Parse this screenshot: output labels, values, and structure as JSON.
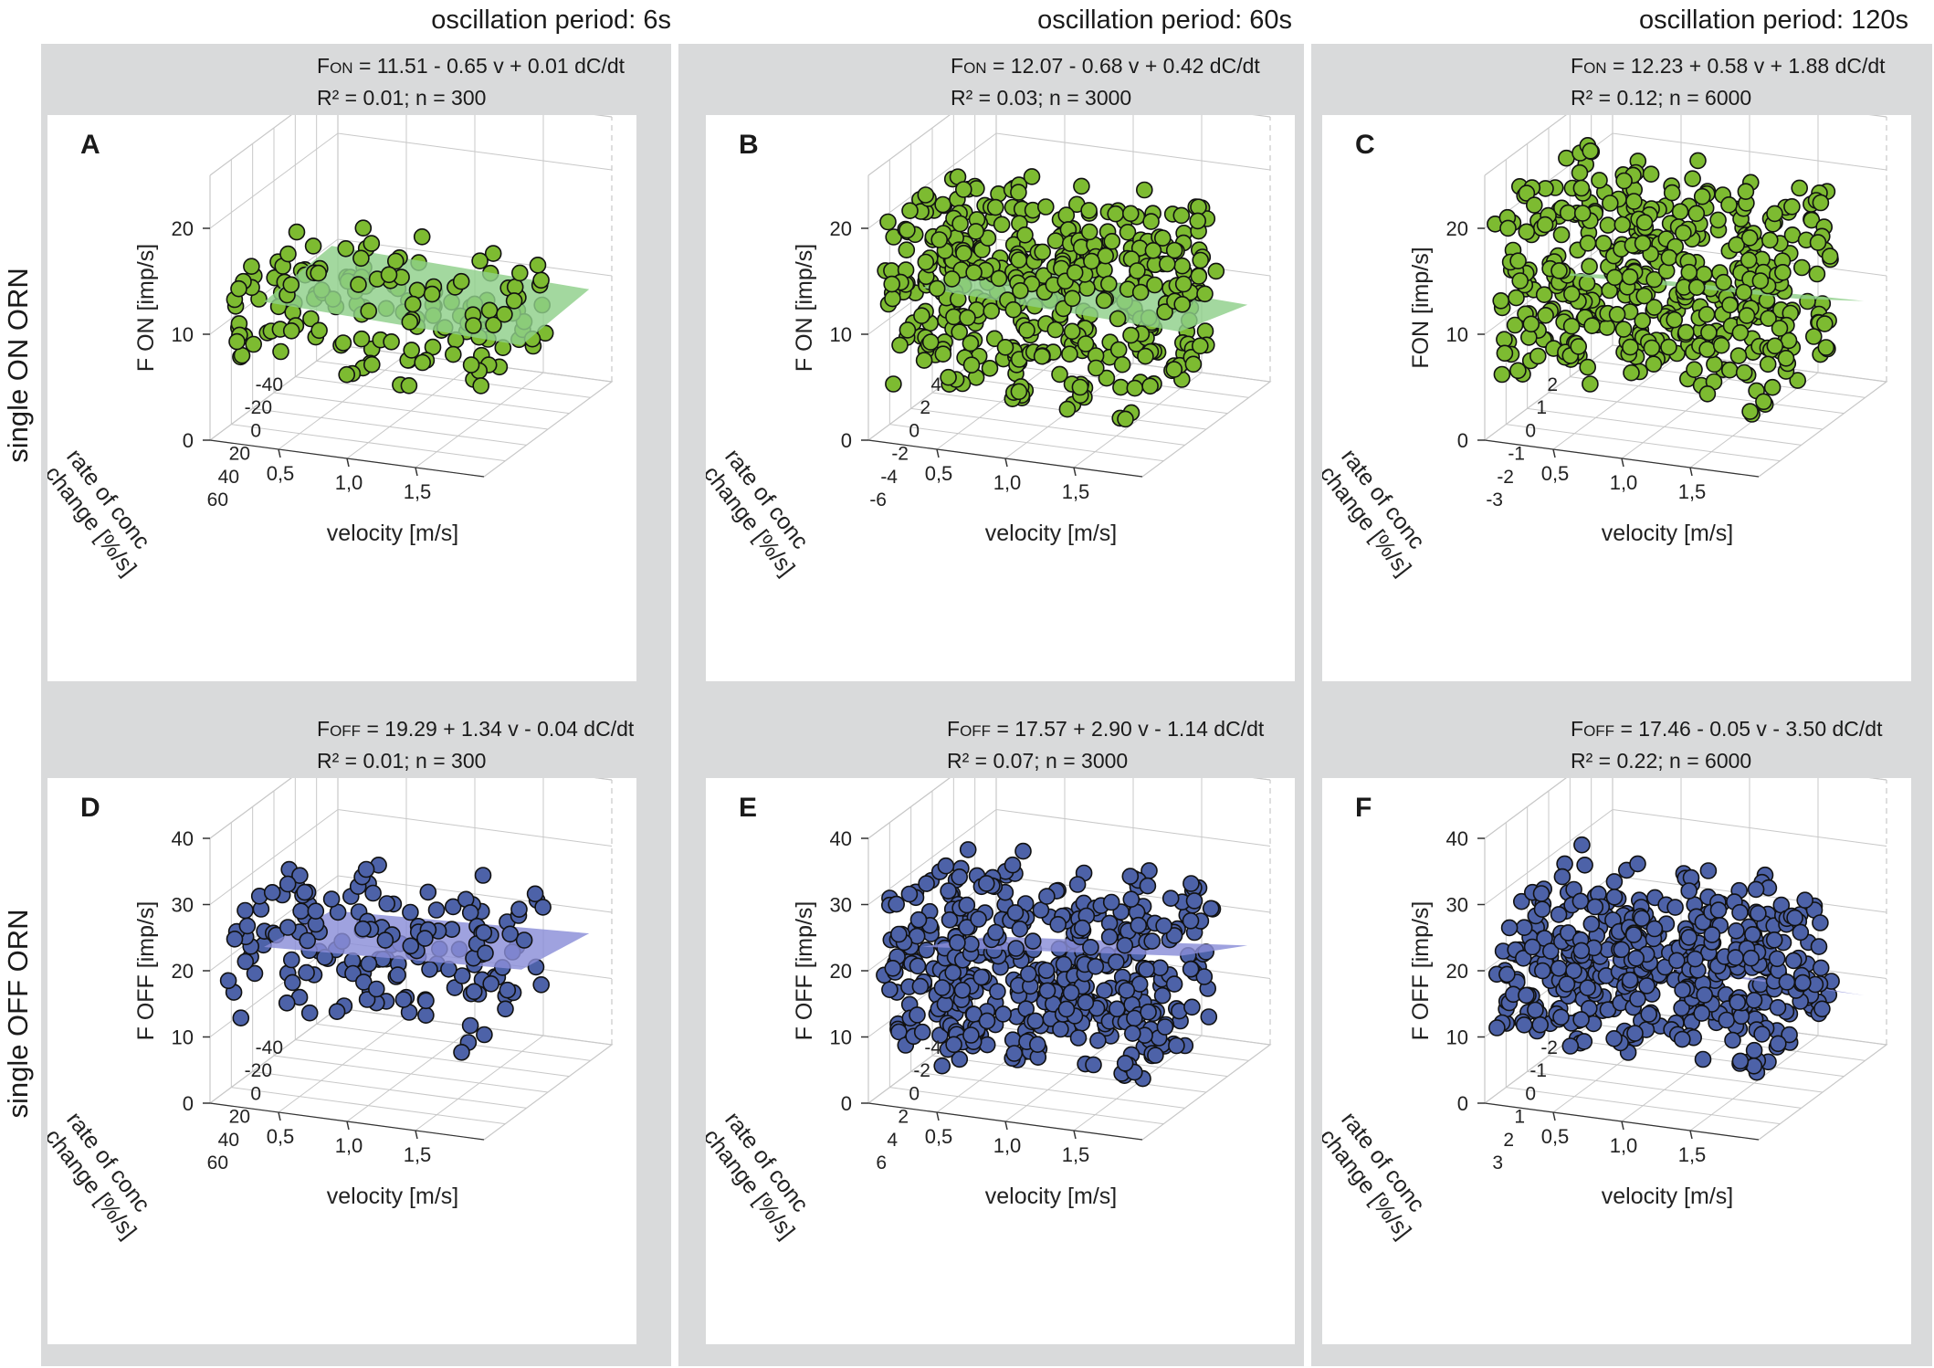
{
  "column_titles": [
    "oscillation period: 6s",
    "oscillation period: 60s",
    "oscillation period: 120s"
  ],
  "row_titles": [
    "single ON ORN",
    "single OFF ORN"
  ],
  "colors": {
    "green_point": "#7dbb31",
    "green_plane": "#8fd08a",
    "blue_point": "#4d62a8",
    "blue_plane": "#8a8ed8",
    "point_edge": "#111111",
    "panel_background": "#d9dadb",
    "gridline": "#c8c8c8"
  },
  "equations": [
    {
      "lhs": "F",
      "sub": "ON",
      "rhs": " = 11.51 - 0.65 v + 0.01 dC/dt",
      "stats": "R² = 0.01; n = 300"
    },
    {
      "lhs": "F",
      "sub": "ON",
      "rhs": " = 12.07 - 0.68 v + 0.42 dC/dt",
      "stats": "R² = 0.03; n = 3000"
    },
    {
      "lhs": "F",
      "sub": "ON",
      "rhs": " = 12.23 + 0.58 v + 1.88 dC/dt",
      "stats": "R² = 0.12; n = 6000"
    },
    {
      "lhs": "F",
      "sub": "OFF",
      "rhs": " = 19.29 + 1.34 v - 0.04 dC/dt",
      "stats": "R² = 0.01; n = 300"
    },
    {
      "lhs": "F",
      "sub": "OFF",
      "rhs": " = 17.57 + 2.90 v - 1.14 dC/dt",
      "stats": "R² = 0.07; n = 3000"
    },
    {
      "lhs": "F",
      "sub": "OFF",
      "rhs": " = 17.46 - 0.05 v - 3.50 dC/dt",
      "stats": "R² = 0.22; n = 6000"
    }
  ],
  "chart_data": [
    {
      "type": "scatter3d",
      "panel": "A",
      "kind": "on",
      "zlabel": "F ON [imp/s]",
      "xlabel": "velocity [m/s]",
      "ylabel": "rate of conc\nchange [%/s]",
      "x_ticks": [
        "0,5",
        "1,0",
        "1,5"
      ],
      "y_ticks": [
        "-40",
        "-20",
        "0",
        "20",
        "40",
        "60"
      ],
      "z_ticks": [
        "0",
        "10",
        "20"
      ],
      "zlim": [
        0,
        25
      ],
      "y_range": [
        -40,
        60
      ],
      "x_range": [
        0.3,
        1.7
      ],
      "fit": {
        "intercept": 11.51,
        "b_v": -0.65,
        "b_dc": 0.01
      },
      "clusters": [
        {
          "v": 0.3,
          "center": 9.5,
          "spread": 4
        },
        {
          "v": 0.6,
          "center": 9.5,
          "spread": 4
        },
        {
          "v": 0.9,
          "center": 9.5,
          "spread": 4
        },
        {
          "v": 1.2,
          "center": 9.5,
          "spread": 4
        },
        {
          "v": 1.5,
          "center": 9.5,
          "spread": 4
        }
      ],
      "n_points": 300
    },
    {
      "type": "scatter3d",
      "panel": "B",
      "kind": "on",
      "zlabel": "F ON [imp/s]",
      "xlabel": "velocity [m/s]",
      "ylabel": "rate of conc\nchange [%/s]",
      "x_ticks": [
        "0,5",
        "1,0",
        "1,5"
      ],
      "y_ticks": [
        "4",
        "2",
        "0",
        "-2",
        "-4",
        "-6"
      ],
      "z_ticks": [
        "0",
        "10",
        "20"
      ],
      "zlim": [
        0,
        25
      ],
      "y_range": [
        4,
        -6
      ],
      "x_range": [
        0.3,
        1.7
      ],
      "fit": {
        "intercept": 12.07,
        "b_v": -0.68,
        "b_dc": 0.42
      },
      "clusters": [
        {
          "v": 0.3,
          "center": 11,
          "spread": 8
        },
        {
          "v": 0.6,
          "center": 11,
          "spread": 8
        },
        {
          "v": 0.9,
          "center": 11,
          "spread": 8
        },
        {
          "v": 1.2,
          "center": 11,
          "spread": 8
        },
        {
          "v": 1.5,
          "center": 11,
          "spread": 8
        }
      ],
      "n_points": 3000
    },
    {
      "type": "scatter3d",
      "panel": "C",
      "kind": "on",
      "zlabel": "FON [imp/s]",
      "xlabel": "velocity [m/s]",
      "ylabel": "rate of conc\nchange [%/s]",
      "x_ticks": [
        "0,5",
        "1,0",
        "1,5"
      ],
      "y_ticks": [
        "2",
        "1",
        "0",
        "-1",
        "-2",
        "-3"
      ],
      "z_ticks": [
        "0",
        "10",
        "20"
      ],
      "zlim": [
        0,
        25
      ],
      "y_range": [
        2,
        -3
      ],
      "x_range": [
        0.3,
        1.7
      ],
      "fit": {
        "intercept": 12.23,
        "b_v": 0.58,
        "b_dc": 1.88
      },
      "clusters": [
        {
          "v": 0.3,
          "center": 12,
          "spread": 9
        },
        {
          "v": 0.6,
          "center": 12,
          "spread": 9
        },
        {
          "v": 0.9,
          "center": 12,
          "spread": 9
        },
        {
          "v": 1.2,
          "center": 12,
          "spread": 9
        },
        {
          "v": 1.5,
          "center": 12,
          "spread": 9
        }
      ],
      "n_points": 6000
    },
    {
      "type": "scatter3d",
      "panel": "D",
      "kind": "off",
      "zlabel": "F OFF [imp/s]",
      "xlabel": "velocity [m/s]",
      "ylabel": "rate of conc\nchange [%/s]",
      "x_ticks": [
        "0,5",
        "1,0",
        "1,5"
      ],
      "y_ticks": [
        "-40",
        "-20",
        "0",
        "20",
        "40",
        "60"
      ],
      "z_ticks": [
        "0",
        "10",
        "20",
        "30",
        "40"
      ],
      "zlim": [
        0,
        40
      ],
      "y_range": [
        -40,
        60
      ],
      "x_range": [
        0.3,
        1.7
      ],
      "fit": {
        "intercept": 19.29,
        "b_v": 1.34,
        "b_dc": -0.04
      },
      "clusters": [
        {
          "v": 0.3,
          "center": 18,
          "spread": 8
        },
        {
          "v": 0.6,
          "center": 18,
          "spread": 8
        },
        {
          "v": 0.9,
          "center": 18,
          "spread": 8
        },
        {
          "v": 1.2,
          "center": 18,
          "spread": 8
        },
        {
          "v": 1.5,
          "center": 18,
          "spread": 8
        }
      ],
      "n_points": 300
    },
    {
      "type": "scatter3d",
      "panel": "E",
      "kind": "off",
      "zlabel": "F OFF [imp/s]",
      "xlabel": "velocity [m/s]",
      "ylabel": "rate of conc\nchange [%/s]",
      "x_ticks": [
        "0,5",
        "1,0",
        "1,5"
      ],
      "y_ticks": [
        "-4",
        "-2",
        "0",
        "2",
        "4",
        "6"
      ],
      "z_ticks": [
        "0",
        "10",
        "20",
        "30",
        "40"
      ],
      "zlim": [
        0,
        40
      ],
      "y_range": [
        -4,
        6
      ],
      "x_range": [
        0.3,
        1.7
      ],
      "fit": {
        "intercept": 17.57,
        "b_v": 2.9,
        "b_dc": -1.14
      },
      "clusters": [
        {
          "v": 0.3,
          "center": 16,
          "spread": 12
        },
        {
          "v": 0.6,
          "center": 16,
          "spread": 12
        },
        {
          "v": 0.9,
          "center": 16,
          "spread": 12
        },
        {
          "v": 1.2,
          "center": 16,
          "spread": 12
        },
        {
          "v": 1.5,
          "center": 16,
          "spread": 12
        }
      ],
      "n_points": 3000
    },
    {
      "type": "scatter3d",
      "panel": "F",
      "kind": "off",
      "zlabel": "F OFF [imp/s]",
      "xlabel": "velocity [m/s]",
      "ylabel": "rate of conc\nchange [%/s]",
      "x_ticks": [
        "0,5",
        "1,0",
        "1,5"
      ],
      "y_ticks": [
        "-2",
        "-1",
        "0",
        "1",
        "2",
        "3"
      ],
      "z_ticks": [
        "0",
        "10",
        "20",
        "30",
        "40"
      ],
      "zlim": [
        0,
        40
      ],
      "y_range": [
        -2,
        3
      ],
      "x_range": [
        0.3,
        1.7
      ],
      "fit": {
        "intercept": 17.46,
        "b_v": -0.05,
        "b_dc": -3.5
      },
      "clusters": [
        {
          "v": 0.3,
          "center": 16,
          "spread": 11
        },
        {
          "v": 0.6,
          "center": 16,
          "spread": 11
        },
        {
          "v": 0.9,
          "center": 16,
          "spread": 11
        },
        {
          "v": 1.2,
          "center": 16,
          "spread": 11
        },
        {
          "v": 1.5,
          "center": 16,
          "spread": 11
        }
      ],
      "n_points": 6000
    }
  ]
}
